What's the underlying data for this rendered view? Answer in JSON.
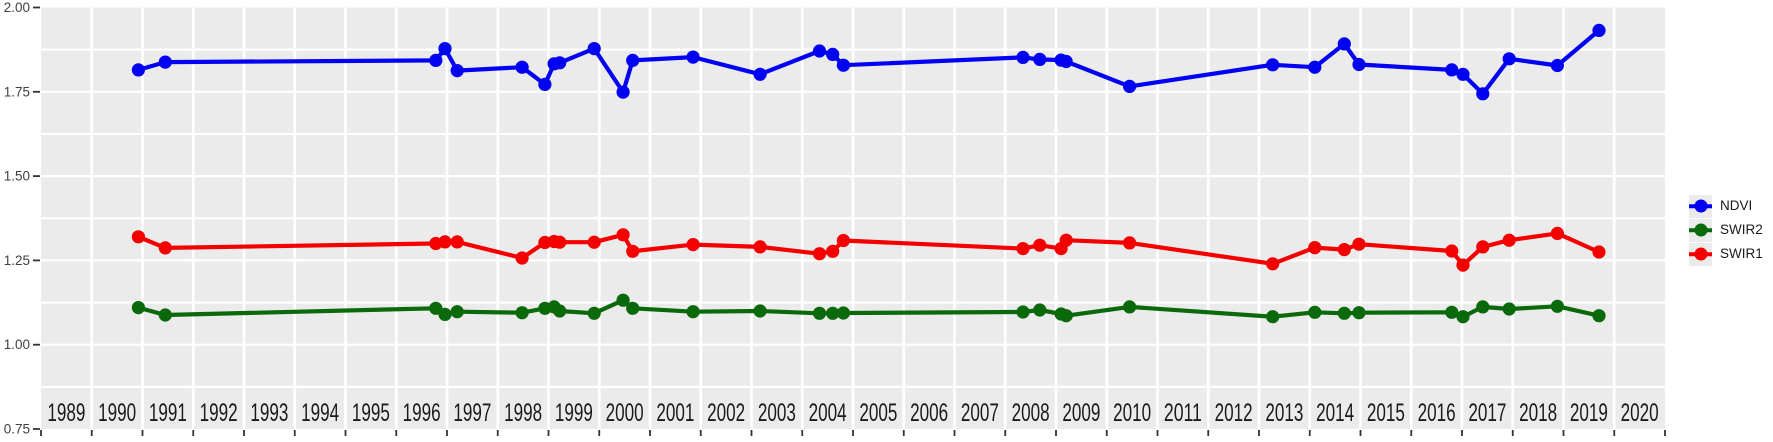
{
  "figure": {
    "background": "#ffffff",
    "panel_background": "#ebebeb",
    "grid_color": "#ffffff",
    "tick_color": "#333333",
    "y_axis_text_color": "#404040",
    "x_axis_text_color": "#1a1a1a"
  },
  "chart_data": {
    "type": "line",
    "title": "",
    "xlabel": "",
    "ylabel": "",
    "xlim": [
      1988.5,
      2020.5
    ],
    "ylim": [
      0.75,
      2.0
    ],
    "y_major_step": 0.25,
    "y_minor_step": 0.125,
    "grid": true,
    "legend_position": "right",
    "x_tick_labels": [
      "1989",
      "1990",
      "1991",
      "1992",
      "1993",
      "1994",
      "1995",
      "1996",
      "1997",
      "1998",
      "1999",
      "2000",
      "2001",
      "2002",
      "2003",
      "2004",
      "2005",
      "2006",
      "2007",
      "2008",
      "2009",
      "2010",
      "2011",
      "2012",
      "2013",
      "2014",
      "2015",
      "2016",
      "2017",
      "2018",
      "2019",
      "2020"
    ],
    "y_tick_labels": [
      "0.75",
      "1.00",
      "1.25",
      "1.50",
      "1.75",
      "2.00"
    ],
    "x": [
      1990.42,
      1990.95,
      1996.28,
      1996.46,
      1996.7,
      1997.98,
      1998.43,
      1998.61,
      1998.72,
      1999.4,
      1999.97,
      2000.16,
      2001.35,
      2002.67,
      2003.84,
      2004.1,
      2004.31,
      2007.85,
      2008.18,
      2008.6,
      2008.7,
      2009.95,
      2012.77,
      2013.6,
      2014.18,
      2014.47,
      2016.3,
      2016.52,
      2016.91,
      2017.43,
      2018.38,
      2019.2
    ],
    "series": [
      {
        "name": "NDVI",
        "color": "#0202f2",
        "values": [
          1.815,
          1.838,
          1.843,
          1.878,
          1.813,
          1.823,
          1.772,
          1.833,
          1.836,
          1.878,
          1.749,
          1.843,
          1.853,
          1.802,
          1.871,
          1.861,
          1.829,
          1.852,
          1.846,
          1.844,
          1.84,
          1.766,
          1.83,
          1.823,
          1.892,
          1.831,
          1.815,
          1.802,
          1.744,
          1.848,
          1.828,
          1.932
        ]
      },
      {
        "name": "SWIR2",
        "color": "#0a690a",
        "values": [
          1.11,
          1.088,
          1.108,
          1.09,
          1.098,
          1.095,
          1.108,
          1.112,
          1.1,
          1.093,
          1.132,
          1.108,
          1.098,
          1.1,
          1.093,
          1.093,
          1.094,
          1.097,
          1.103,
          1.091,
          1.086,
          1.112,
          1.083,
          1.096,
          1.093,
          1.095,
          1.096,
          1.083,
          1.112,
          1.106,
          1.114,
          1.086
        ]
      },
      {
        "name": "SWIR1",
        "color": "#f50000",
        "values": [
          1.32,
          1.287,
          1.3,
          1.305,
          1.305,
          1.257,
          1.303,
          1.306,
          1.304,
          1.304,
          1.326,
          1.277,
          1.297,
          1.29,
          1.27,
          1.277,
          1.309,
          1.285,
          1.295,
          1.285,
          1.31,
          1.302,
          1.24,
          1.288,
          1.282,
          1.298,
          1.278,
          1.236,
          1.29,
          1.31,
          1.33,
          1.275
        ]
      }
    ],
    "legend_order": [
      "NDVI",
      "SWIR2",
      "SWIR1"
    ]
  }
}
